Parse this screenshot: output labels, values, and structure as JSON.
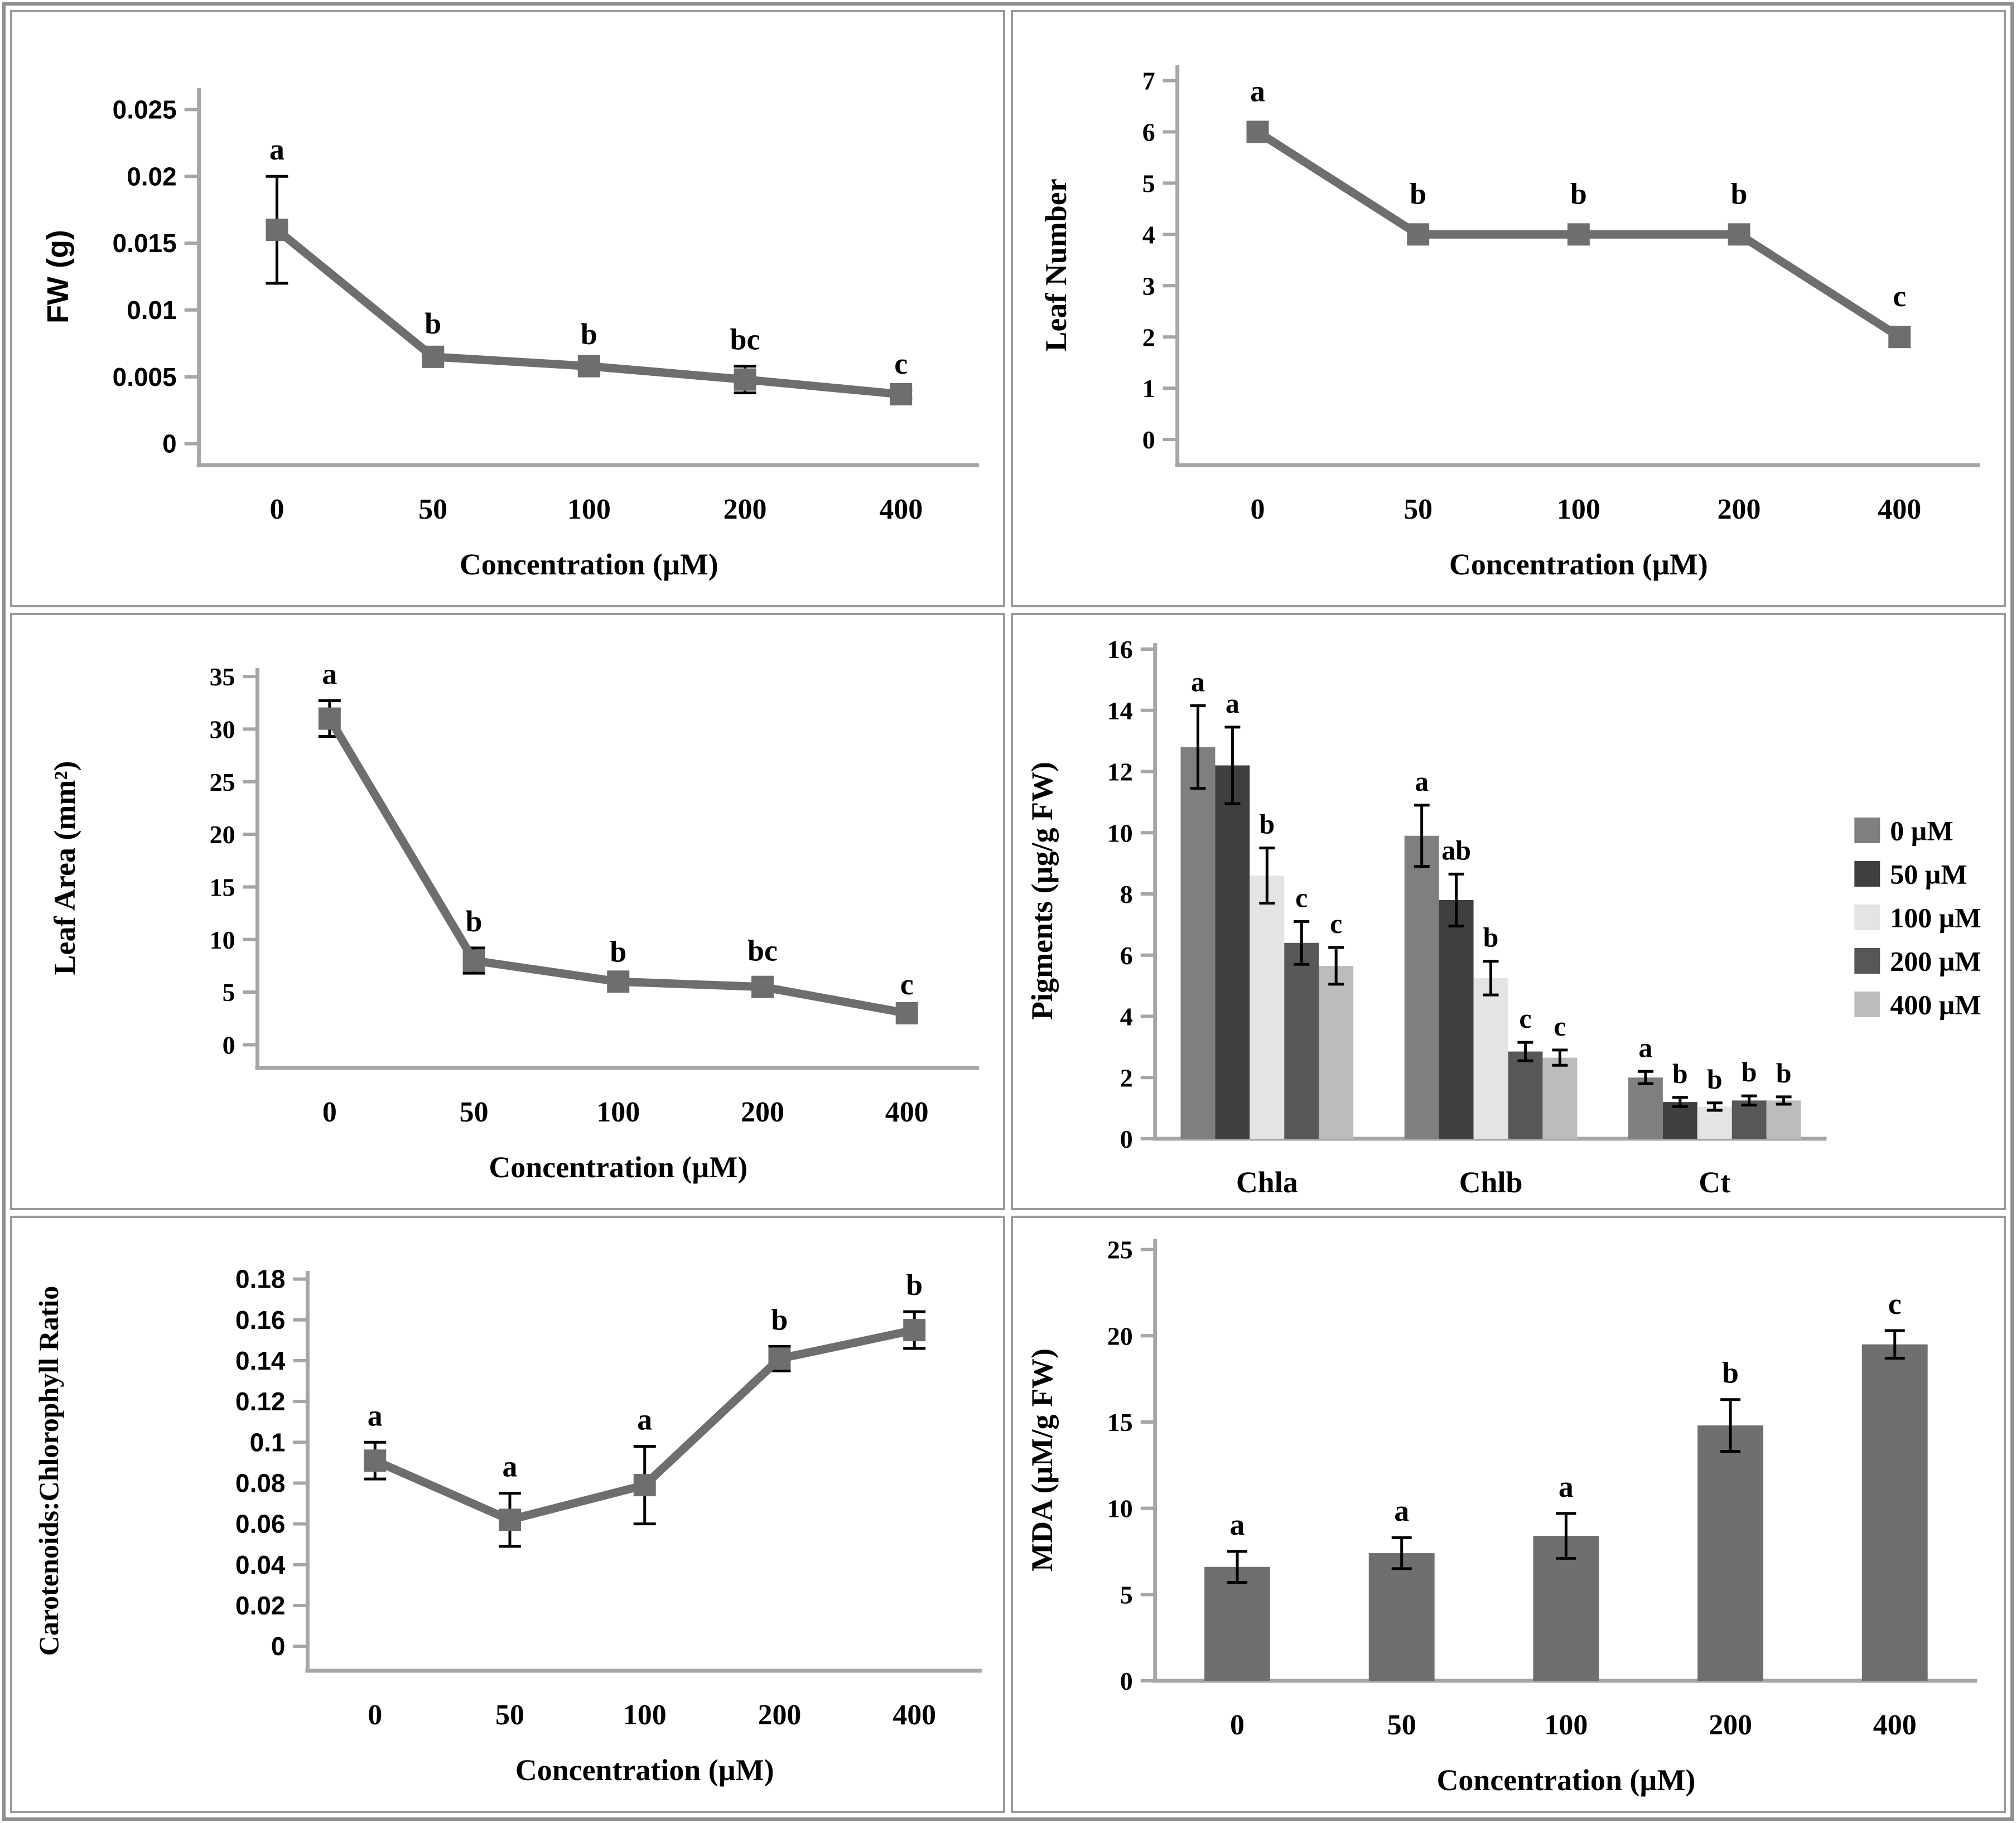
{
  "figure": {
    "description": "Six-panel plant physiology figure: responses to increasing concentration",
    "axis_color": "#a6a6a6",
    "series_gray": "#6e6e6e",
    "error_bar_color": "#000000"
  },
  "chart_data": [
    {
      "id": "fw",
      "type": "line",
      "title": "",
      "ylabel": "FW (g)",
      "xlabel": "Concentration (µM)",
      "categories": [
        "0",
        "50",
        "100",
        "200",
        "400"
      ],
      "values": [
        0.016,
        0.0065,
        0.0058,
        0.0048,
        0.0037
      ],
      "errors": [
        0.004,
        0.0005,
        0.0004,
        0.001,
        0.0003
      ],
      "point_labels": [
        "a",
        "b",
        "b",
        "bc",
        "c"
      ],
      "yticks": [
        0,
        0.005,
        0.01,
        0.015,
        0.02,
        0.025
      ],
      "ytick_labels": [
        "0",
        "0.005",
        "0.01",
        "0.015",
        "0.02",
        "0.025"
      ],
      "ylim": [
        -0.0016,
        0.0266
      ],
      "line_color": "#6e6e6e",
      "grid": false,
      "legend_position": "none"
    },
    {
      "id": "leaf_number",
      "type": "line",
      "title": "",
      "ylabel": "Leaf Number",
      "xlabel": "Concentration (µM)",
      "categories": [
        "0",
        "50",
        "100",
        "200",
        "400"
      ],
      "values": [
        6,
        4,
        4,
        4,
        2
      ],
      "errors": [
        0,
        0,
        0,
        0,
        0
      ],
      "point_labels": [
        "a",
        "b",
        "b",
        "b",
        "c"
      ],
      "yticks": [
        0,
        1,
        2,
        3,
        4,
        5,
        6,
        7
      ],
      "ytick_labels": [
        "0",
        "1",
        "2",
        "3",
        "4",
        "5",
        "6",
        "7"
      ],
      "ylim": [
        -0.5,
        7.3
      ],
      "line_color": "#6e6e6e",
      "grid": false,
      "legend_position": "none"
    },
    {
      "id": "leaf_area",
      "type": "line",
      "title": "",
      "ylabel": "Leaf Area (mm²)",
      "xlabel": "Concentration (µM)",
      "categories": [
        "0",
        "50",
        "100",
        "200",
        "400"
      ],
      "values": [
        31,
        8,
        6,
        5.5,
        3
      ],
      "errors": [
        1.7,
        1.2,
        0.3,
        0.9,
        0.2
      ],
      "point_labels": [
        "a",
        "b",
        "b",
        "bc",
        "c"
      ],
      "yticks": [
        0,
        5,
        10,
        15,
        20,
        25,
        30,
        35
      ],
      "ytick_labels": [
        "0",
        "5",
        "10",
        "15",
        "20",
        "25",
        "30",
        "35"
      ],
      "ylim": [
        -2.2,
        35.8
      ],
      "line_color": "#6e6e6e",
      "grid": false,
      "legend_position": "none"
    },
    {
      "id": "pigments",
      "type": "grouped_bar",
      "title": "",
      "ylabel": "Pigments (µg/g FW)",
      "xlabel": "",
      "categories": [
        "Chla",
        "Chlb",
        "Ct"
      ],
      "series": [
        {
          "name": "0 µM",
          "color": "#7f7f7f",
          "values": [
            12.8,
            9.9,
            2.0
          ],
          "errors": [
            1.35,
            1.0,
            0.2
          ],
          "labels": [
            "a",
            "a",
            "a"
          ]
        },
        {
          "name": "50 µM",
          "color": "#3f3f3f",
          "values": [
            12.2,
            7.8,
            1.2
          ],
          "errors": [
            1.25,
            0.85,
            0.15
          ],
          "labels": [
            "a",
            "ab",
            "b"
          ]
        },
        {
          "name": "100 µM",
          "color": "#e4e4e4",
          "values": [
            8.6,
            5.25,
            1.05
          ],
          "errors": [
            0.9,
            0.55,
            0.12
          ],
          "labels": [
            "b",
            "b",
            "b"
          ]
        },
        {
          "name": "200 µM",
          "color": "#575757",
          "values": [
            6.4,
            2.85,
            1.25
          ],
          "errors": [
            0.7,
            0.3,
            0.15
          ],
          "labels": [
            "c",
            "c",
            "b"
          ]
        },
        {
          "name": "400 µM",
          "color": "#bcbcbc",
          "values": [
            5.65,
            2.65,
            1.25
          ],
          "errors": [
            0.6,
            0.25,
            0.12
          ],
          "labels": [
            "c",
            "c",
            "b"
          ]
        }
      ],
      "yticks": [
        0,
        2,
        4,
        6,
        8,
        10,
        12,
        14,
        16
      ],
      "ytick_labels": [
        "0",
        "2",
        "4",
        "6",
        "8",
        "10",
        "12",
        "14",
        "16"
      ],
      "ylim": [
        0,
        16.2
      ],
      "grid": false,
      "legend_position": "right"
    },
    {
      "id": "ratio",
      "type": "line",
      "title": "",
      "ylabel": "Carotenoids:Chlorophyll Ratio",
      "xlabel": "Concentration (µM)",
      "categories": [
        "0",
        "50",
        "100",
        "200",
        "400"
      ],
      "values": [
        0.091,
        0.062,
        0.079,
        0.141,
        0.155
      ],
      "errors": [
        0.009,
        0.013,
        0.019,
        0.006,
        0.009
      ],
      "point_labels": [
        "a",
        "a",
        "a",
        "b",
        "b"
      ],
      "yticks": [
        0,
        0.02,
        0.04,
        0.06,
        0.08,
        0.1,
        0.12,
        0.14,
        0.16,
        0.18
      ],
      "ytick_labels": [
        "0",
        "0.02",
        "0.04",
        "0.06",
        "0.08",
        "0.1",
        "0.12",
        "0.14",
        "0.16",
        "0.18"
      ],
      "ylim": [
        -0.012,
        0.184
      ],
      "line_color": "#6e6e6e",
      "grid": false,
      "legend_position": "none"
    },
    {
      "id": "mda",
      "type": "bar",
      "title": "",
      "ylabel": "MDA (µM/g FW)",
      "xlabel": "Concentration (µM)",
      "categories": [
        "0",
        "50",
        "100",
        "200",
        "400"
      ],
      "values": [
        6.6,
        7.4,
        8.4,
        14.8,
        19.5
      ],
      "errors": [
        0.9,
        0.9,
        1.3,
        1.5,
        0.8
      ],
      "point_labels": [
        "a",
        "a",
        "a",
        "b",
        "c"
      ],
      "yticks": [
        0,
        5,
        10,
        15,
        20,
        25
      ],
      "ytick_labels": [
        "0",
        "5",
        "10",
        "15",
        "20",
        "25"
      ],
      "ylim": [
        0,
        25.6
      ],
      "bar_color": "#6f6f6f",
      "grid": false,
      "legend_position": "none"
    }
  ]
}
